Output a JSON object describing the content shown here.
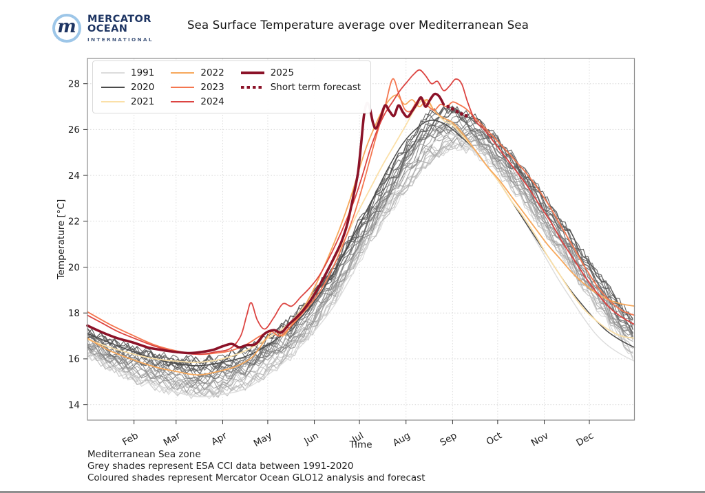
{
  "header": {
    "title": "Sea Surface Temperature average over Mediterranean Sea"
  },
  "logo": {
    "monogram": "m",
    "line1": "MERCATOR",
    "line2": "OCEAN",
    "line3": "INTERNATIONAL"
  },
  "footer": {
    "lines": [
      "Mediterranean Sea zone",
      "Grey shades represent ESA CCI data between 1991-2020",
      "Coloured shades represent Mercator Ocean GLO12 analysis and forecast"
    ]
  },
  "colors": {
    "background": "#ffffff",
    "grid": "#d6d6d6",
    "frame": "#8c8c8c",
    "tick_text": "#1a1a1a",
    "brand_navy": "#1e3563",
    "brand_blue": "#9dc6e8",
    "grey_light": "#d7d7d7",
    "grey_dark": "#4a4a4a",
    "y2021": "#fbe0a8",
    "y2022": "#f7a85b",
    "y2023": "#f4764f",
    "y2024": "#dc4441",
    "y2025": "#8b1228"
  },
  "chart_data": {
    "type": "line",
    "title": "Sea Surface Temperature average over Mediterranean Sea",
    "xlabel": "Time",
    "ylabel": "Temperature [°C]",
    "x_unit": "day_of_year",
    "xlim": [
      0,
      364
    ],
    "ylim": [
      13.3,
      29.1
    ],
    "yticks": [
      14,
      16,
      18,
      20,
      22,
      24,
      26,
      28
    ],
    "month_ticks": {
      "labels": [
        "Feb",
        "Mar",
        "Apr",
        "May",
        "Jun",
        "Jul",
        "Aug",
        "Sep",
        "Oct",
        "Nov",
        "Dec"
      ],
      "days": [
        31,
        59,
        90,
        120,
        151,
        181,
        212,
        243,
        273,
        304,
        334
      ]
    },
    "grid": true,
    "legend_position": "upper left",
    "legend": {
      "columns": [
        [
          {
            "label": "1991",
            "color": "#dcdcdc",
            "style": "solid",
            "weight": 2
          },
          {
            "label": "2020",
            "color": "#4a4a4a",
            "style": "solid",
            "weight": 2
          },
          {
            "label": "2021",
            "color": "#fbe0a8",
            "style": "solid",
            "weight": 2
          }
        ],
        [
          {
            "label": "2022",
            "color": "#f7a85b",
            "style": "solid",
            "weight": 2
          },
          {
            "label": "2023",
            "color": "#f4764f",
            "style": "solid",
            "weight": 2
          },
          {
            "label": "2024",
            "color": "#dc4441",
            "style": "solid",
            "weight": 2
          }
        ],
        [
          {
            "label": "2025",
            "color": "#8b1228",
            "style": "solid",
            "weight": 4
          },
          {
            "label": "Short term forecast",
            "color": "#8b1228",
            "style": "dotted",
            "weight": 4
          }
        ]
      ]
    },
    "series": [
      {
        "name": "1991",
        "color": "#dcdcdc",
        "width": 1.4,
        "x": [
          0,
          15,
          31,
          45,
          59,
          74,
          90,
          105,
          120,
          135,
          151,
          165,
          178,
          190,
          200,
          210,
          220,
          228,
          236,
          243,
          250,
          258,
          266,
          274,
          282,
          290,
          298,
          306,
          314,
          322,
          330,
          338,
          346,
          355,
          364
        ],
        "values": [
          16.3,
          15.7,
          15.2,
          14.85,
          14.55,
          14.35,
          14.45,
          14.7,
          15.3,
          16.1,
          17.2,
          18.4,
          19.9,
          21.5,
          22.8,
          23.9,
          24.8,
          25.3,
          25.7,
          25.8,
          25.5,
          25.0,
          24.4,
          23.7,
          22.9,
          22.1,
          21.2,
          20.3,
          19.4,
          18.6,
          17.8,
          17.1,
          16.6,
          16.2,
          15.9
        ]
      },
      {
        "name": "2020",
        "color": "#4a4a4a",
        "width": 1.5,
        "x": [
          0,
          15,
          31,
          45,
          59,
          74,
          90,
          105,
          120,
          135,
          151,
          165,
          178,
          190,
          200,
          210,
          220,
          228,
          236,
          243,
          250,
          258,
          266,
          274,
          282,
          290,
          298,
          306,
          314,
          322,
          330,
          338,
          346,
          355,
          364
        ],
        "values": [
          17.1,
          16.7,
          16.3,
          16.0,
          15.8,
          15.7,
          15.85,
          16.1,
          16.6,
          17.35,
          18.5,
          19.9,
          21.5,
          23.0,
          24.3,
          25.4,
          26.1,
          26.4,
          26.3,
          26.0,
          25.6,
          25.1,
          24.4,
          23.7,
          22.9,
          22.1,
          21.3,
          20.5,
          19.7,
          18.95,
          18.3,
          17.7,
          17.2,
          16.8,
          16.5
        ]
      },
      {
        "name": "2021",
        "color": "#fbe0a8",
        "width": 1.8,
        "x": [
          0,
          15,
          31,
          45,
          59,
          74,
          90,
          105,
          120,
          135,
          151,
          163,
          172,
          180,
          188,
          196,
          204,
          212,
          218,
          224,
          230,
          237,
          243,
          250,
          258,
          266,
          274,
          282,
          290,
          298,
          306,
          314,
          322,
          330,
          338,
          346,
          355,
          364
        ],
        "values": [
          16.85,
          16.5,
          16.2,
          16.0,
          15.9,
          15.85,
          16.0,
          16.35,
          16.9,
          17.6,
          18.9,
          20.2,
          21.3,
          22.4,
          23.4,
          24.4,
          25.3,
          26.2,
          26.9,
          27.3,
          26.9,
          26.4,
          26.2,
          25.7,
          25.1,
          24.4,
          23.7,
          22.9,
          22.2,
          21.4,
          20.5,
          19.7,
          18.9,
          18.2,
          17.7,
          17.3,
          17.0,
          16.9
        ]
      },
      {
        "name": "2022",
        "color": "#f7a85b",
        "width": 1.8,
        "x": [
          0,
          15,
          31,
          45,
          59,
          74,
          90,
          100,
          110,
          118,
          124,
          130,
          136,
          142,
          151,
          160,
          168,
          175,
          181,
          186,
          191,
          196,
          201,
          206,
          211,
          216,
          221,
          226,
          231,
          237,
          243,
          250,
          258,
          266,
          274,
          282,
          290,
          298,
          306,
          314,
          322,
          330,
          338,
          346,
          355,
          364
        ],
        "values": [
          16.9,
          16.35,
          15.95,
          15.65,
          15.45,
          15.3,
          15.5,
          15.7,
          16.1,
          16.8,
          17.25,
          17.0,
          17.5,
          18.0,
          19.1,
          20.4,
          21.7,
          23.0,
          24.3,
          25.3,
          26.1,
          26.8,
          27.3,
          27.5,
          27.1,
          27.3,
          27.0,
          27.3,
          26.8,
          26.5,
          26.3,
          25.8,
          25.1,
          24.4,
          23.8,
          23.1,
          22.4,
          21.7,
          21.0,
          20.4,
          19.8,
          19.3,
          18.9,
          18.6,
          18.4,
          18.3
        ]
      },
      {
        "name": "2023",
        "color": "#f4764f",
        "width": 1.8,
        "x": [
          0,
          15,
          31,
          45,
          59,
          74,
          85,
          95,
          105,
          115,
          122,
          128,
          135,
          142,
          151,
          158,
          165,
          172,
          178,
          183,
          188,
          193,
          198,
          203,
          207,
          211,
          215,
          219,
          223,
          227,
          231,
          235,
          239,
          243,
          247,
          252,
          258,
          264,
          270,
          277,
          284,
          292,
          300,
          308,
          316,
          324,
          332,
          340,
          348,
          356,
          364
        ],
        "values": [
          18.05,
          17.5,
          17.0,
          16.6,
          16.35,
          16.2,
          16.25,
          16.35,
          16.6,
          17.0,
          17.2,
          17.0,
          17.4,
          17.9,
          18.6,
          19.3,
          20.2,
          21.3,
          22.4,
          23.5,
          24.7,
          25.9,
          27.0,
          28.2,
          27.6,
          26.9,
          26.8,
          27.2,
          27.3,
          27.0,
          26.85,
          27.1,
          27.0,
          27.2,
          27.1,
          26.9,
          26.5,
          26.1,
          25.7,
          25.2,
          24.7,
          24.1,
          23.4,
          22.6,
          21.7,
          20.8,
          19.9,
          19.1,
          18.5,
          18.1,
          17.9
        ]
      },
      {
        "name": "2024",
        "color": "#dc4441",
        "width": 1.8,
        "x": [
          0,
          10,
          20,
          31,
          45,
          59,
          74,
          85,
          95,
          102,
          106,
          109,
          113,
          118,
          124,
          130,
          136,
          142,
          148,
          154,
          160,
          166,
          172,
          178,
          183,
          188,
          193,
          198,
          203,
          208,
          213,
          217,
          221,
          225,
          229,
          233,
          237,
          241,
          245,
          249,
          253,
          258,
          264,
          270,
          277,
          284,
          292,
          300,
          308,
          316,
          324,
          332,
          340,
          348,
          356,
          364
        ],
        "values": [
          17.9,
          17.55,
          17.2,
          16.9,
          16.55,
          16.3,
          16.2,
          16.3,
          16.45,
          17.0,
          17.9,
          18.45,
          17.7,
          17.3,
          17.8,
          18.4,
          18.3,
          18.7,
          19.1,
          19.6,
          20.3,
          21.1,
          22.0,
          23.0,
          24.0,
          25.1,
          26.0,
          26.7,
          27.2,
          27.7,
          28.1,
          28.4,
          28.6,
          28.35,
          28.0,
          28.1,
          27.7,
          27.9,
          28.2,
          28.0,
          27.2,
          26.4,
          26.0,
          25.5,
          24.9,
          24.3,
          23.6,
          22.8,
          22.0,
          21.1,
          20.3,
          19.5,
          18.8,
          18.2,
          17.8,
          17.5
        ]
      },
      {
        "name": "2025",
        "color": "#8b1228",
        "width": 3.6,
        "x": [
          0,
          10,
          20,
          31,
          40,
          50,
          59,
          68,
          76,
          84,
          90,
          96,
          101,
          106,
          112,
          118,
          124,
          129,
          134,
          139,
          144,
          149,
          154,
          159,
          164,
          169,
          173,
          177,
          180,
          182,
          184,
          186,
          188,
          190,
          192,
          195,
          198,
          201,
          204,
          207,
          210,
          213,
          216,
          219,
          222,
          225,
          228,
          231,
          234,
          237
        ],
        "values": [
          17.45,
          17.15,
          16.9,
          16.7,
          16.5,
          16.38,
          16.3,
          16.25,
          16.3,
          16.4,
          16.55,
          16.65,
          16.5,
          16.6,
          16.65,
          17.1,
          17.25,
          17.15,
          17.5,
          17.8,
          18.15,
          18.6,
          19.15,
          19.75,
          20.4,
          21.1,
          21.9,
          23.1,
          24.1,
          25.3,
          26.6,
          27.15,
          26.9,
          26.3,
          26.05,
          26.5,
          27.05,
          26.8,
          26.6,
          27.05,
          26.75,
          26.55,
          26.8,
          27.1,
          27.4,
          27.0,
          27.3,
          27.55,
          27.45,
          27.1
        ]
      }
    ],
    "forecast": {
      "name": "Short term forecast",
      "color": "#8b1228",
      "style": "dotted",
      "x": [
        240,
        243,
        246,
        249,
        252
      ],
      "values": [
        27.0,
        26.9,
        26.78,
        26.68,
        26.6
      ]
    },
    "grey_ensemble": {
      "description": "ESA CCI yearly SST curves between 1991 and 2020 (grey shades)",
      "count": 28,
      "days": [
        0,
        15,
        31,
        46,
        59,
        74,
        90,
        105,
        120,
        135,
        151,
        166,
        181,
        196,
        212,
        227,
        243,
        258,
        273,
        288,
        304,
        319,
        334,
        349,
        364
      ],
      "lower": [
        16.2,
        15.6,
        15.1,
        14.75,
        14.55,
        14.4,
        14.5,
        14.8,
        15.35,
        16.1,
        17.3,
        18.7,
        20.3,
        21.9,
        23.4,
        24.6,
        25.3,
        25.0,
        24.1,
        23.0,
        21.6,
        20.2,
        18.7,
        17.3,
        16.0
      ],
      "upper": [
        17.2,
        16.8,
        16.45,
        16.2,
        16.05,
        15.95,
        16.1,
        16.4,
        16.9,
        17.7,
        18.9,
        20.3,
        22.0,
        23.7,
        25.3,
        26.7,
        26.9,
        26.5,
        25.6,
        24.5,
        23.1,
        21.7,
        20.2,
        18.9,
        17.6
      ],
      "noise": 0.18,
      "seed": 11,
      "color_light": "#d7d7d7",
      "color_dark": "#525252"
    }
  }
}
